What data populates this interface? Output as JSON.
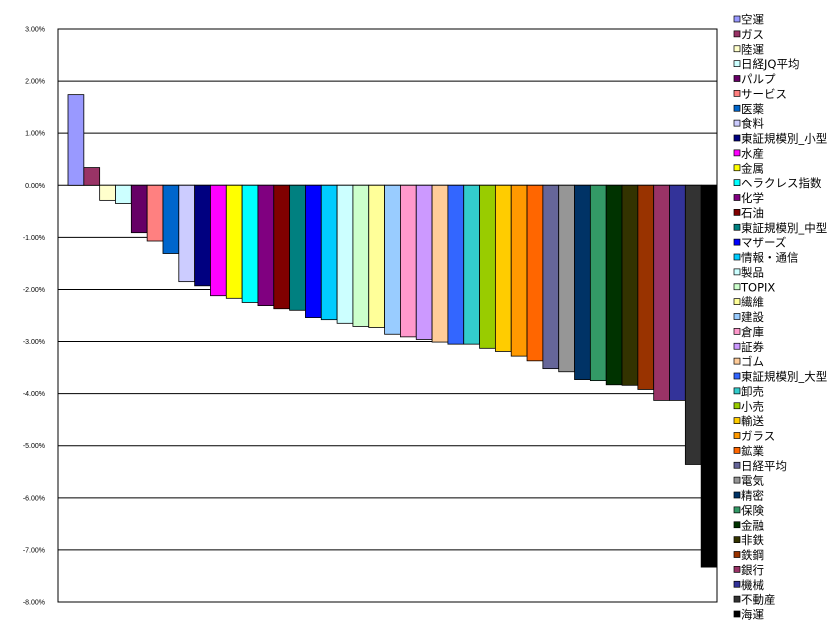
{
  "chart_data": {
    "type": "bar",
    "title": "",
    "xlabel": "",
    "ylabel": "",
    "ylim": [
      -8,
      3
    ],
    "y_tick_labels": [
      "3.00%",
      "2.00%",
      "1.00%",
      "0.00%",
      "-1.00%",
      "-2.00%",
      "-3.00%",
      "-4.00%",
      "-5.00%",
      "-6.00%",
      "-7.00%",
      "-8.00%"
    ],
    "grid": true,
    "legend_position": "right",
    "series": [
      {
        "name": "空運",
        "value": 1.74,
        "color": "#9999FF"
      },
      {
        "name": "ガス",
        "value": 0.34,
        "color": "#993366"
      },
      {
        "name": "陸運",
        "value": -0.29,
        "color": "#FFFFCC"
      },
      {
        "name": "日経JQ平均",
        "value": -0.35,
        "color": "#CCFFFF"
      },
      {
        "name": "パルプ",
        "value": -0.91,
        "color": "#660066"
      },
      {
        "name": "サービス",
        "value": -1.07,
        "color": "#FF8080"
      },
      {
        "name": "医薬",
        "value": -1.31,
        "color": "#0066CC"
      },
      {
        "name": "食料",
        "value": -1.85,
        "color": "#CCCCFF"
      },
      {
        "name": "東証規模別_小型",
        "value": -1.93,
        "color": "#000080"
      },
      {
        "name": "水産",
        "value": -2.12,
        "color": "#FF00FF"
      },
      {
        "name": "金属",
        "value": -2.17,
        "color": "#FFFF00"
      },
      {
        "name": "ヘラクレス指数",
        "value": -2.25,
        "color": "#00FFFF"
      },
      {
        "name": "化学",
        "value": -2.31,
        "color": "#800080"
      },
      {
        "name": "石油",
        "value": -2.37,
        "color": "#800000"
      },
      {
        "name": "東証規模別_中型",
        "value": -2.4,
        "color": "#008080"
      },
      {
        "name": "マザーズ",
        "value": -2.54,
        "color": "#0000FF"
      },
      {
        "name": "情報・通信",
        "value": -2.58,
        "color": "#00CCFF"
      },
      {
        "name": "製品",
        "value": -2.65,
        "color": "#CCFFFF"
      },
      {
        "name": "TOPIX",
        "value": -2.71,
        "color": "#CCFFCC"
      },
      {
        "name": "繊維",
        "value": -2.73,
        "color": "#FFFF99"
      },
      {
        "name": "建設",
        "value": -2.86,
        "color": "#99CCFF"
      },
      {
        "name": "倉庫",
        "value": -2.91,
        "color": "#FF99CC"
      },
      {
        "name": "証券",
        "value": -2.96,
        "color": "#CC99FF"
      },
      {
        "name": "ゴム",
        "value": -3.01,
        "color": "#FFCC99"
      },
      {
        "name": "東証規模別_大型",
        "value": -3.05,
        "color": "#3366FF"
      },
      {
        "name": "卸売",
        "value": -3.05,
        "color": "#33CCCC"
      },
      {
        "name": "小売",
        "value": -3.13,
        "color": "#99CC00"
      },
      {
        "name": "輸送",
        "value": -3.19,
        "color": "#FFCC00"
      },
      {
        "name": "ガラス",
        "value": -3.28,
        "color": "#FF9900"
      },
      {
        "name": "鉱業",
        "value": -3.37,
        "color": "#FF6600"
      },
      {
        "name": "日経平均",
        "value": -3.52,
        "color": "#666699"
      },
      {
        "name": "電気",
        "value": -3.58,
        "color": "#969696"
      },
      {
        "name": "精密",
        "value": -3.73,
        "color": "#003366"
      },
      {
        "name": "保険",
        "value": -3.75,
        "color": "#339966"
      },
      {
        "name": "金融",
        "value": -3.83,
        "color": "#003300"
      },
      {
        "name": "非鉄",
        "value": -3.84,
        "color": "#333300"
      },
      {
        "name": "鉄鋼",
        "value": -3.92,
        "color": "#993300"
      },
      {
        "name": "銀行",
        "value": -4.13,
        "color": "#993366"
      },
      {
        "name": "機械",
        "value": -4.13,
        "color": "#333399"
      },
      {
        "name": "不動産",
        "value": -5.36,
        "color": "#333333"
      },
      {
        "name": "海運",
        "value": -7.33,
        "color": "#000000"
      }
    ]
  }
}
